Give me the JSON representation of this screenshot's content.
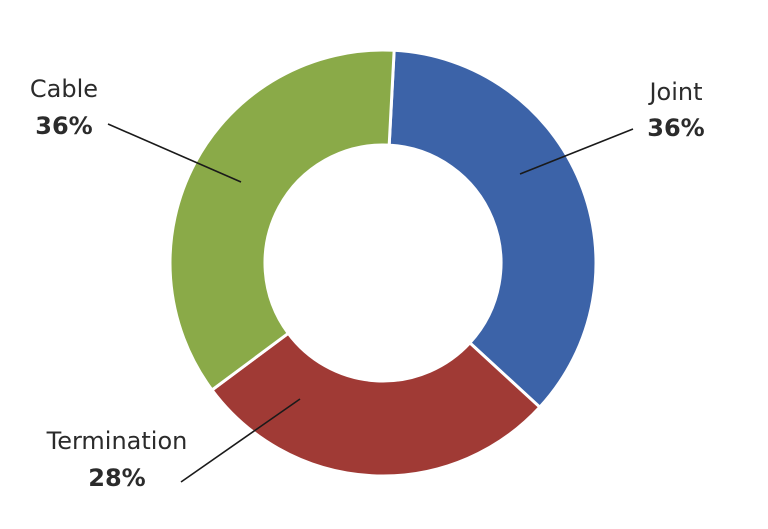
{
  "chart_data": {
    "type": "pie",
    "donut": true,
    "title": "",
    "slices": [
      {
        "label": "Joint",
        "value": 36,
        "display": "36%",
        "color": "#3C63A8"
      },
      {
        "label": "Termination",
        "value": 28,
        "display": "28%",
        "color": "#A03A35"
      },
      {
        "label": "Cable",
        "value": 36,
        "display": "36%",
        "color": "#8AAA48"
      }
    ],
    "legend": "none"
  }
}
